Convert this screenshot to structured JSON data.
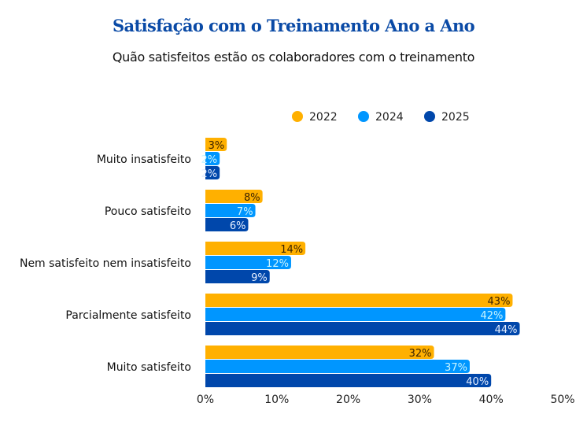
{
  "chart_data": {
    "type": "bar",
    "orientation": "horizontal",
    "title": "Satisfação com o Treinamento Ano a Ano",
    "subtitle": "Quão satisfeitos estão os colaboradores com o treinamento",
    "categories": [
      "Muito insatisfeito",
      "Pouco satisfeito",
      "Nem satisfeito nem insatisfeito",
      "Parcialmente satisfeito",
      "Muito satisfeito"
    ],
    "series": [
      {
        "name": "2022",
        "color": "#FFB000",
        "label_color": "#3a2200",
        "values": [
          3,
          8,
          14,
          43,
          32
        ]
      },
      {
        "name": "2024",
        "color": "#0096FF",
        "label_color": "#c9f4ff",
        "values": [
          2,
          7,
          12,
          42,
          37
        ]
      },
      {
        "name": "2025",
        "color": "#0047AB",
        "label_color": "#e6efff",
        "values": [
          2,
          6,
          9,
          44,
          40
        ]
      }
    ],
    "xlim": [
      0,
      50
    ],
    "xticks": [
      "0%",
      "10%",
      "20%",
      "30%",
      "40%",
      "50%"
    ],
    "value_suffix": "%",
    "legend_position": "top-right",
    "grid": false
  }
}
